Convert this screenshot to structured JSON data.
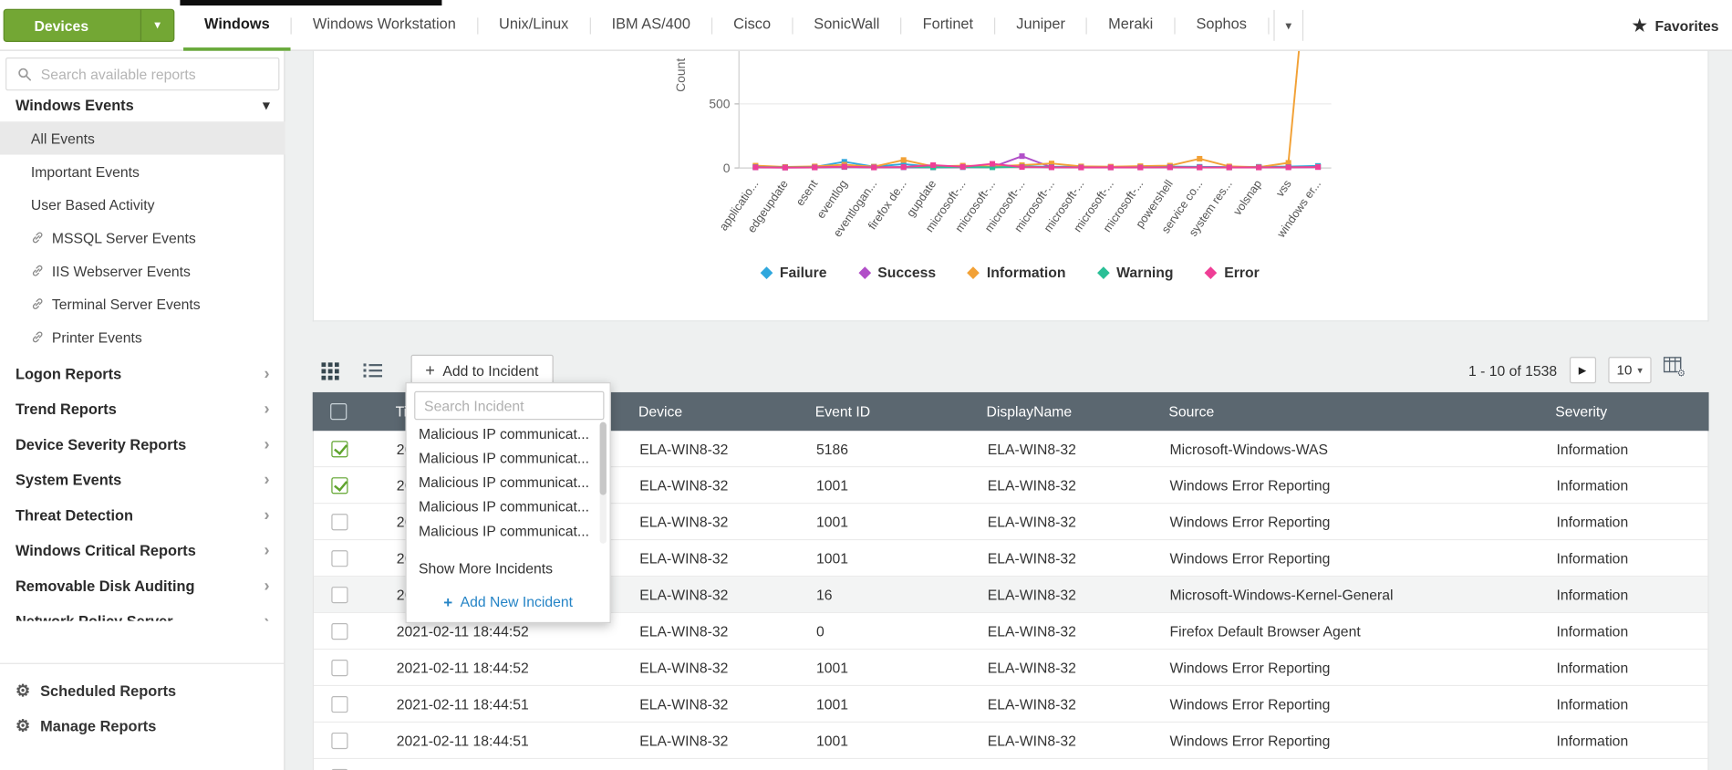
{
  "colors": {
    "brand_green": "#73a734",
    "brand_green_dark": "#5e8d26",
    "active_tab_underline": "#68a93a",
    "table_header_bg": "#5b6770",
    "link_blue": "#2584c6",
    "checkbox_green": "#5fa42d"
  },
  "icons": {
    "caret_down": "▾",
    "chevron_right": "›",
    "star": "★",
    "gear": "⚙",
    "next": "▶",
    "plus": "+"
  },
  "topbar": {
    "devices_label": "Devices",
    "tabs": [
      "Windows",
      "Windows Workstation",
      "Unix/Linux",
      "IBM AS/400",
      "Cisco",
      "SonicWall",
      "Fortinet",
      "Juniper",
      "Meraki",
      "Sophos"
    ],
    "active_tab": "Windows",
    "favorites_label": "Favorites"
  },
  "sidebar": {
    "search_placeholder": "Search available reports",
    "group_label": "Windows Events",
    "report_items": [
      {
        "label": "All Events",
        "selected": true,
        "linked": false
      },
      {
        "label": "Important Events",
        "selected": false,
        "linked": false
      },
      {
        "label": "User Based Activity",
        "selected": false,
        "linked": false
      },
      {
        "label": "MSSQL Server Events",
        "selected": false,
        "linked": true
      },
      {
        "label": "IIS Webserver Events",
        "selected": false,
        "linked": true
      },
      {
        "label": "Terminal Server Events",
        "selected": false,
        "linked": true
      },
      {
        "label": "Printer Events",
        "selected": false,
        "linked": true
      }
    ],
    "sections": [
      "Logon Reports",
      "Trend Reports",
      "Device Severity Reports",
      "System Events",
      "Threat Detection",
      "Windows Critical Reports",
      "Removable Disk Auditing",
      "Network Policy Server"
    ],
    "footer": [
      {
        "label": "Scheduled Reports"
      },
      {
        "label": "Manage Reports"
      }
    ]
  },
  "chart_data": {
    "type": "line",
    "title": "",
    "ylabel": "Count",
    "yticks": [
      0,
      500
    ],
    "ylim": [
      0,
      500
    ],
    "legend_position": "bottom",
    "grid": true,
    "categories": [
      "applicatio...",
      "edgeupdate",
      "esent",
      "eventlog",
      "eventlogan...",
      "firefox de...",
      "gupdate",
      "microsoft-...",
      "microsoft-...",
      "microsoft-...",
      "microsoft-...",
      "microsoft-...",
      "microsoft-...",
      "microsoft-...",
      "powershell",
      "service co...",
      "system res...",
      "volsnap",
      "vss",
      "windows er..."
    ],
    "series": [
      {
        "name": "Failure",
        "color": "#2fa7dd",
        "values": [
          10,
          5,
          8,
          48,
          10,
          30,
          8,
          12,
          9,
          13,
          9,
          11,
          8,
          9,
          11,
          9,
          7,
          9,
          11,
          16
        ]
      },
      {
        "name": "Success",
        "color": "#b14fc8",
        "values": [
          4,
          3,
          4,
          7,
          4,
          5,
          4,
          6,
          7,
          92,
          5,
          4,
          4,
          4,
          5,
          4,
          4,
          4,
          5,
          7
        ]
      },
      {
        "name": "Information",
        "color": "#f2a136",
        "values": [
          18,
          8,
          12,
          25,
          10,
          62,
          12,
          18,
          12,
          22,
          35,
          12,
          10,
          14,
          18,
          72,
          12,
          6,
          40,
          2500
        ]
      },
      {
        "name": "Warning",
        "color": "#2abf96",
        "values": [
          7,
          4,
          5,
          9,
          5,
          7,
          5,
          7,
          5,
          9,
          7,
          5,
          4,
          5,
          7,
          5,
          4,
          5,
          7,
          9
        ]
      },
      {
        "name": "Error",
        "color": "#ef3e96",
        "values": [
          5,
          3,
          4,
          10,
          4,
          7,
          22,
          9,
          32,
          7,
          5,
          4,
          4,
          4,
          5,
          4,
          4,
          4,
          5,
          7
        ]
      }
    ]
  },
  "toolbar": {
    "add_to_incident": "Add to Incident",
    "pagination": "1 - 10 of 1538",
    "page_size": "10"
  },
  "incident_dropdown": {
    "search_placeholder": "Search Incident",
    "incidents": [
      "Malicious IP communicat...",
      "Malicious IP communicat...",
      "Malicious IP communicat...",
      "Malicious IP communicat...",
      "Malicious IP communicat..."
    ],
    "show_more": "Show More Incidents",
    "add_new": "Add New Incident"
  },
  "table": {
    "columns": [
      "Time",
      "Device",
      "Event ID",
      "DisplayName",
      "Source",
      "Severity"
    ],
    "rows": [
      {
        "checked": true,
        "highlighted": false,
        "time": "2021-02-11 18:44:52",
        "device": "ELA-WIN8-32",
        "event_id": "5186",
        "display_name": "ELA-WIN8-32",
        "source": "Microsoft-Windows-WAS",
        "severity": "Information"
      },
      {
        "checked": true,
        "highlighted": false,
        "time": "2021-02-11 18:44:52",
        "device": "ELA-WIN8-32",
        "event_id": "1001",
        "display_name": "ELA-WIN8-32",
        "source": "Windows Error Reporting",
        "severity": "Information"
      },
      {
        "checked": false,
        "highlighted": false,
        "time": "2021-02-11 18:44:52",
        "device": "ELA-WIN8-32",
        "event_id": "1001",
        "display_name": "ELA-WIN8-32",
        "source": "Windows Error Reporting",
        "severity": "Information"
      },
      {
        "checked": false,
        "highlighted": false,
        "time": "2021-02-11 18:44:52",
        "device": "ELA-WIN8-32",
        "event_id": "1001",
        "display_name": "ELA-WIN8-32",
        "source": "Windows Error Reporting",
        "severity": "Information"
      },
      {
        "checked": false,
        "highlighted": true,
        "time": "2021-02-11 18:44:52",
        "device": "ELA-WIN8-32",
        "event_id": "16",
        "display_name": "ELA-WIN8-32",
        "source": "Microsoft-Windows-Kernel-General",
        "severity": "Information"
      },
      {
        "checked": false,
        "highlighted": false,
        "time": "2021-02-11 18:44:52",
        "device": "ELA-WIN8-32",
        "event_id": "0",
        "display_name": "ELA-WIN8-32",
        "source": "Firefox Default Browser Agent",
        "severity": "Information"
      },
      {
        "checked": false,
        "highlighted": false,
        "time": "2021-02-11 18:44:52",
        "device": "ELA-WIN8-32",
        "event_id": "1001",
        "display_name": "ELA-WIN8-32",
        "source": "Windows Error Reporting",
        "severity": "Information"
      },
      {
        "checked": false,
        "highlighted": false,
        "time": "2021-02-11 18:44:51",
        "device": "ELA-WIN8-32",
        "event_id": "1001",
        "display_name": "ELA-WIN8-32",
        "source": "Windows Error Reporting",
        "severity": "Information"
      },
      {
        "checked": false,
        "highlighted": false,
        "time": "2021-02-11 18:44:51",
        "device": "ELA-WIN8-32",
        "event_id": "1001",
        "display_name": "ELA-WIN8-32",
        "source": "Windows Error Reporting",
        "severity": "Information"
      },
      {
        "checked": false,
        "highlighted": false,
        "time": "",
        "device": "",
        "event_id": "",
        "display_name": "",
        "source": "",
        "severity": ""
      }
    ]
  }
}
